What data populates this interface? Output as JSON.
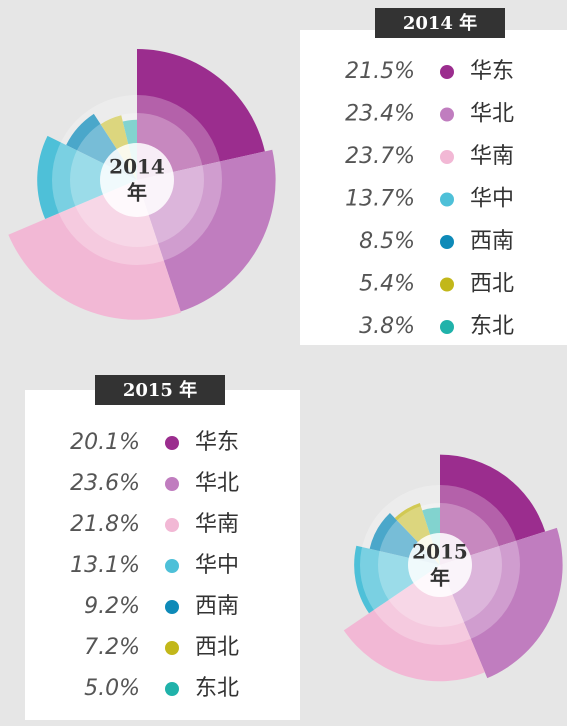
{
  "chart_data": [
    {
      "type": "pie",
      "title": "2014 年",
      "center_label": [
        "2014",
        "年"
      ],
      "categories": [
        "华东",
        "华北",
        "华南",
        "华中",
        "西南",
        "西北",
        "东北"
      ],
      "values": [
        21.5,
        23.4,
        23.7,
        13.7,
        8.5,
        5.4,
        3.8
      ],
      "value_labels": [
        "21.5%",
        "23.4%",
        "23.7%",
        "13.7%",
        "8.5%",
        "5.4%",
        "3.8%"
      ],
      "colors": [
        "#9b2d8e",
        "#c07dbf",
        "#f2b8d5",
        "#4ec0d8",
        "#0e8ab8",
        "#c2b71a",
        "#20b2aa"
      ]
    },
    {
      "type": "pie",
      "title": "2015 年",
      "center_label": [
        "2015",
        "年"
      ],
      "categories": [
        "华东",
        "华北",
        "华南",
        "华中",
        "西南",
        "西北",
        "东北"
      ],
      "values": [
        20.1,
        23.6,
        21.8,
        13.1,
        9.2,
        7.2,
        5.0
      ],
      "value_labels": [
        "20.1%",
        "23.6%",
        "21.8%",
        "13.1%",
        "9.2%",
        "7.2%",
        "5.0%"
      ],
      "colors": [
        "#9b2d8e",
        "#c07dbf",
        "#f2b8d5",
        "#4ec0d8",
        "#0e8ab8",
        "#c2b71a",
        "#20b2aa"
      ]
    }
  ]
}
